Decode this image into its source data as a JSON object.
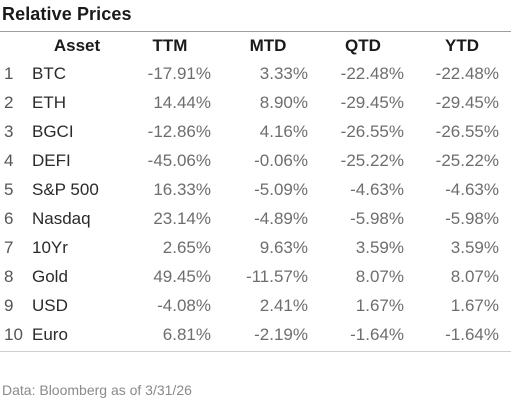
{
  "title": "Relative Prices",
  "columns": {
    "asset": "Asset",
    "ttm": "TTM",
    "mtd": "MTD",
    "qtd": "QTD",
    "ytd": "YTD"
  },
  "rows": [
    {
      "rank": "1",
      "asset": "BTC",
      "ttm": "-17.91%",
      "mtd": "3.33%",
      "qtd": "-22.48%",
      "ytd": "-22.48%"
    },
    {
      "rank": "2",
      "asset": "ETH",
      "ttm": "14.44%",
      "mtd": "8.90%",
      "qtd": "-29.45%",
      "ytd": "-29.45%"
    },
    {
      "rank": "3",
      "asset": "BGCI",
      "ttm": "-12.86%",
      "mtd": "4.16%",
      "qtd": "-26.55%",
      "ytd": "-26.55%"
    },
    {
      "rank": "4",
      "asset": "DEFI",
      "ttm": "-45.06%",
      "mtd": "-0.06%",
      "qtd": "-25.22%",
      "ytd": "-25.22%"
    },
    {
      "rank": "5",
      "asset": "S&P 500",
      "ttm": "16.33%",
      "mtd": "-5.09%",
      "qtd": "-4.63%",
      "ytd": "-4.63%"
    },
    {
      "rank": "6",
      "asset": "Nasdaq",
      "ttm": "23.14%",
      "mtd": "-4.89%",
      "qtd": "-5.98%",
      "ytd": "-5.98%"
    },
    {
      "rank": "7",
      "asset": "10Yr",
      "ttm": "2.65%",
      "mtd": "9.63%",
      "qtd": "3.59%",
      "ytd": "3.59%"
    },
    {
      "rank": "8",
      "asset": "Gold",
      "ttm": "49.45%",
      "mtd": "-11.57%",
      "qtd": "8.07%",
      "ytd": "8.07%"
    },
    {
      "rank": "9",
      "asset": "USD",
      "ttm": "-4.08%",
      "mtd": "2.41%",
      "qtd": "1.67%",
      "ytd": "1.67%"
    },
    {
      "rank": "10",
      "asset": "Euro",
      "ttm": "6.81%",
      "mtd": "-2.19%",
      "qtd": "-1.64%",
      "ytd": "-1.64%"
    }
  ],
  "footnote": "Data: Bloomberg as of 3/31/26",
  "colors": {
    "text": "#2a2a2a",
    "numbers": "#6e6e6e",
    "rule": "#9e9e9e",
    "footnote": "#8a8a8a"
  }
}
